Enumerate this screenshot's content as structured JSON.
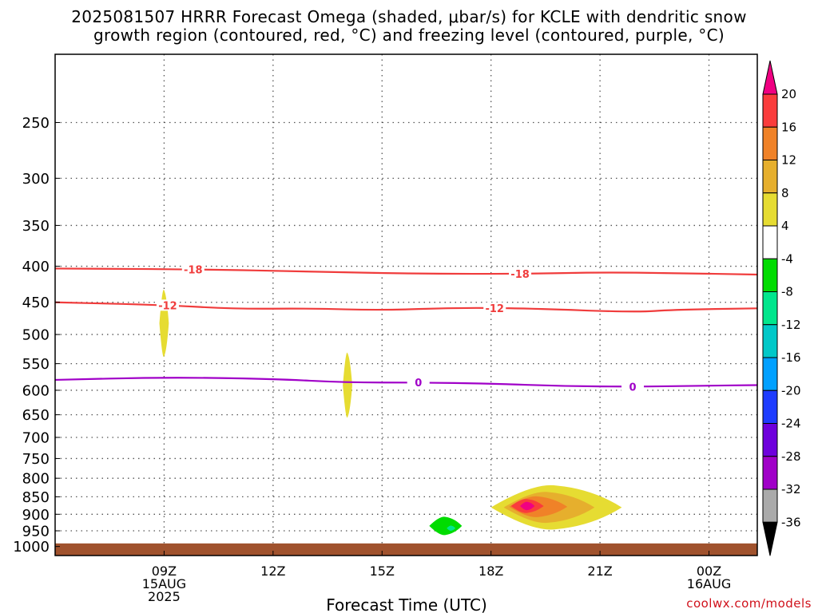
{
  "header": {
    "title_line1": "2025081507 HRRR Forecast Omega (shaded, μbar/s) for KCLE with dendritic snow",
    "title_line2": "growth region (contoured, red, °C) and freezing level (contoured, purple, °C)"
  },
  "credit": "coolwx.com/models",
  "chart_data": {
    "type": "contour",
    "xlabel": "Forecast Time (UTC)",
    "ylabel": "",
    "x_range_hours": [
      6.0,
      25.33
    ],
    "x_ticks": [
      {
        "hour": 9,
        "label": "09Z",
        "sub": [
          "15AUG",
          "2025"
        ]
      },
      {
        "hour": 12,
        "label": "12Z",
        "sub": []
      },
      {
        "hour": 15,
        "label": "15Z",
        "sub": []
      },
      {
        "hour": 18,
        "label": "18Z",
        "sub": []
      },
      {
        "hour": 21,
        "label": "21Z",
        "sub": []
      },
      {
        "hour": 24,
        "label": "00Z",
        "sub": [
          "16AUG"
        ]
      }
    ],
    "y_scale": "log",
    "y_reversed": true,
    "y_range_hPa": [
      200,
      1030
    ],
    "y_ticks": [
      250,
      300,
      350,
      400,
      450,
      500,
      550,
      600,
      650,
      700,
      750,
      800,
      850,
      900,
      950,
      1000
    ],
    "grid": true,
    "ground_level_hPa": 990,
    "contours": [
      {
        "name": "-18",
        "color": "#f03c3c",
        "points": [
          [
            6,
            403
          ],
          [
            10,
            404
          ],
          [
            13,
            407
          ],
          [
            16,
            410
          ],
          [
            19,
            410
          ],
          [
            21,
            408
          ],
          [
            23,
            409
          ],
          [
            25.33,
            411
          ]
        ],
        "labels": [
          [
            9.8,
            "-18"
          ],
          [
            18.8,
            "-18"
          ]
        ]
      },
      {
        "name": "-12",
        "color": "#f03c3c",
        "points": [
          [
            6,
            450
          ],
          [
            9,
            454
          ],
          [
            11,
            460
          ],
          [
            13,
            459
          ],
          [
            15,
            462
          ],
          [
            17,
            458
          ],
          [
            19,
            459
          ],
          [
            22,
            465
          ],
          [
            23,
            461
          ],
          [
            25.33,
            459
          ]
        ],
        "labels": [
          [
            9.1,
            "-12"
          ],
          [
            18.1,
            "-12"
          ]
        ]
      },
      {
        "name": "0",
        "color": "#a000c8",
        "points": [
          [
            6,
            580
          ],
          [
            9,
            575
          ],
          [
            12,
            578
          ],
          [
            14,
            585
          ],
          [
            16,
            585
          ],
          [
            18,
            587
          ],
          [
            20,
            592
          ],
          [
            22,
            593
          ],
          [
            24,
            591
          ],
          [
            25.33,
            590
          ]
        ],
        "labels": [
          [
            16.0,
            "0"
          ],
          [
            21.9,
            "0"
          ]
        ]
      }
    ],
    "omega_shaded": [
      {
        "level": "4 to 8",
        "color": "#e6dc32",
        "center": [
          9.0,
          482
        ],
        "half_width_h": 0.13,
        "half_height_hPa": 55
      },
      {
        "level": "4 to 8",
        "color": "#e6dc32",
        "center": [
          14.05,
          590
        ],
        "half_width_h": 0.13,
        "half_height_hPa": 65
      },
      {
        "level": "4 to 8",
        "color": "#e6dc32",
        "center": [
          19.8,
          880
        ],
        "half_width_h": 1.8,
        "half_height_hPa": 65
      },
      {
        "level": "8 to 12",
        "color": "#e6af2d",
        "center": [
          19.6,
          880
        ],
        "half_width_h": 1.25,
        "half_height_hPa": 45
      },
      {
        "level": "12 to 16",
        "color": "#f08228",
        "center": [
          19.3,
          878
        ],
        "half_width_h": 0.8,
        "half_height_hPa": 30
      },
      {
        "level": "16 to 20",
        "color": "#fa3c3c",
        "center": [
          19.0,
          876
        ],
        "half_width_h": 0.45,
        "half_height_hPa": 20
      },
      {
        "level": "> 20",
        "color": "#f00082",
        "center": [
          19.0,
          876
        ],
        "half_width_h": 0.2,
        "half_height_hPa": 12
      },
      {
        "level": "-8 to -4",
        "color": "#00dc00",
        "center": [
          16.75,
          935
        ],
        "half_width_h": 0.45,
        "half_height_hPa": 28
      },
      {
        "level": "-12 to -8",
        "color": "#00e68c",
        "center": [
          16.9,
          942
        ],
        "half_width_h": 0.12,
        "half_height_hPa": 8
      }
    ],
    "colorbar": {
      "labels": [
        "20",
        "16",
        "12",
        "8",
        "4",
        "-4",
        "-8",
        "-12",
        "-16",
        "-20",
        "-24",
        "-28",
        "-32",
        "-36"
      ],
      "top_arrow_color": "#f00082",
      "colors": [
        "#fa3c3c",
        "#f08228",
        "#e6af2d",
        "#e6dc32",
        "#ffffff",
        "#00dc00",
        "#00e68c",
        "#00c8c8",
        "#00a0ff",
        "#1e3cff",
        "#6e00dc",
        "#a000c8",
        "#aaaaaa"
      ],
      "bottom_arrow_color": "#000000"
    },
    "ground_color": "#a0522d"
  }
}
